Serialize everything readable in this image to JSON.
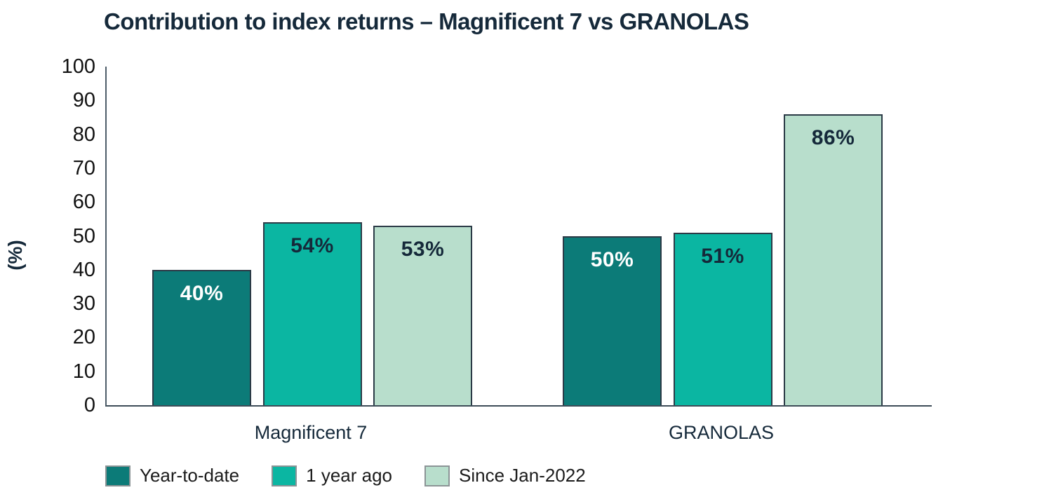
{
  "title": "Contribution to index returns – Magnificent 7 vs GRANOLAS",
  "chart_data": {
    "type": "bar",
    "title": "Contribution to index returns – Magnificent 7 vs GRANOLAS",
    "categories": [
      "Magnificent 7",
      "GRANOLAS"
    ],
    "series": [
      {
        "name": "Year-to-date",
        "values": [
          40,
          50
        ],
        "color": "#0C7B78",
        "label_color": "#FFFFFF"
      },
      {
        "name": "1 year ago",
        "values": [
          54,
          51
        ],
        "color": "#0BB6A2",
        "label_color": "#15293A"
      },
      {
        "name": "Since Jan-2022",
        "values": [
          53,
          86
        ],
        "color": "#B8DECC",
        "label_color": "#15293A"
      }
    ],
    "value_labels": [
      [
        "40%",
        "50%"
      ],
      [
        "54%",
        "51%"
      ],
      [
        "53%",
        "86%"
      ]
    ],
    "xlabel": "",
    "ylabel": "(%)",
    "ylim": [
      0,
      100
    ],
    "yticks": [
      0,
      10,
      20,
      30,
      40,
      50,
      60,
      70,
      80,
      90,
      100
    ],
    "grid": false,
    "legend_position": "bottom",
    "value_suffix": "%"
  },
  "colors": {
    "title_text": "#15293A",
    "tick_text": "#111111",
    "axis_line": "#3D4C58",
    "bar_border": "#2B3A46",
    "legend_swatch_border": "#8C9496",
    "background": "#FFFFFF"
  }
}
